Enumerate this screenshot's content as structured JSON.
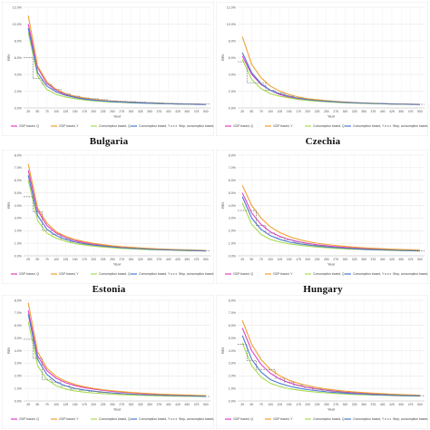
{
  "chart_data": [
    {
      "type": "line",
      "country": "Bulgaria",
      "ylabel": "RRI",
      "xlabel": "Year",
      "ylim": [
        0,
        0.12
      ],
      "yticks": [
        "0.0%",
        "2.0%",
        "4.0%",
        "6.0%",
        "8.0%",
        "10.0%",
        "12.0%"
      ],
      "xticks": [
        "25",
        "50",
        "75",
        "100",
        "125",
        "150",
        "175",
        "200",
        "225",
        "250",
        "275",
        "300",
        "325",
        "350",
        "375",
        "400",
        "425",
        "450",
        "475",
        "500"
      ],
      "series": [
        {
          "name": "GDP based, Q",
          "color": "#e040c8",
          "values": [
            0.1,
            0.048,
            0.029,
            0.021,
            0.016,
            0.013,
            0.011,
            0.0095,
            0.0085,
            0.0075,
            0.007,
            0.0065,
            0.006,
            0.0056,
            0.0053,
            0.005,
            0.0047,
            0.0045,
            0.0043,
            0.0041
          ]
        },
        {
          "name": "GDP based, Y",
          "color": "#f0a030",
          "values": [
            0.11,
            0.05,
            0.031,
            0.022,
            0.017,
            0.014,
            0.012,
            0.0103,
            0.0092,
            0.0082,
            0.0075,
            0.007,
            0.0064,
            0.006,
            0.0056,
            0.0053,
            0.005,
            0.0047,
            0.0045,
            0.0043
          ]
        },
        {
          "name": "Consumption based, Q",
          "color": "#a8dc50",
          "values": [
            0.09,
            0.038,
            0.022,
            0.016,
            0.013,
            0.011,
            0.0095,
            0.0085,
            0.0077,
            0.007,
            0.0065,
            0.006,
            0.0057,
            0.0054,
            0.0051,
            0.0049,
            0.0047,
            0.0045,
            0.0043,
            0.0042
          ]
        },
        {
          "name": "Consumption based, Y",
          "color": "#4a78d8",
          "values": [
            0.095,
            0.042,
            0.026,
            0.019,
            0.015,
            0.0125,
            0.0105,
            0.0093,
            0.0083,
            0.0075,
            0.0069,
            0.0064,
            0.006,
            0.0056,
            0.0053,
            0.005,
            0.0048,
            0.0046,
            0.0044,
            0.0042
          ]
        },
        {
          "name": "Step, consumption based, Y",
          "color": "#808080",
          "dashed": true,
          "values": [
            0.06,
            0.035,
            0.028,
            0.022,
            0.017,
            0.014,
            0.012,
            0.011,
            0.01,
            0.0085,
            0.008,
            0.0075,
            0.007,
            0.0065,
            0.006,
            0.0055,
            0.0052,
            0.005,
            0.0048,
            0.0046
          ]
        }
      ]
    },
    {
      "type": "line",
      "country": "Czechia",
      "ylabel": "RRI",
      "xlabel": "Year",
      "ylim": [
        0,
        0.12
      ],
      "yticks": [
        "0.0%",
        "2.0%",
        "4.0%",
        "6.0%",
        "8.0%",
        "10.0%",
        "12.0%"
      ],
      "xticks": [
        "25",
        "50",
        "75",
        "100",
        "125",
        "150",
        "175",
        "200",
        "225",
        "250",
        "275",
        "300",
        "325",
        "350",
        "375",
        "400",
        "425",
        "450",
        "475",
        "500"
      ],
      "series": [
        {
          "name": "GDP based, Q",
          "color": "#e040c8",
          "values": [
            0.062,
            0.04,
            0.028,
            0.021,
            0.016,
            0.013,
            0.011,
            0.0095,
            0.0085,
            0.0077,
            0.007,
            0.0065,
            0.006,
            0.0056,
            0.0053,
            0.005,
            0.0047,
            0.0045,
            0.0043,
            0.0041
          ]
        },
        {
          "name": "GDP based, Y",
          "color": "#f0a030",
          "values": [
            0.085,
            0.052,
            0.036,
            0.026,
            0.02,
            0.016,
            0.013,
            0.011,
            0.0098,
            0.0087,
            0.0078,
            0.0071,
            0.0065,
            0.006,
            0.0056,
            0.0052,
            0.0049,
            0.0047,
            0.0045,
            0.0043
          ]
        },
        {
          "name": "Consumption based, Q",
          "color": "#a8dc50",
          "values": [
            0.058,
            0.034,
            0.023,
            0.017,
            0.014,
            0.012,
            0.01,
            0.009,
            0.008,
            0.0073,
            0.0067,
            0.0062,
            0.0058,
            0.0054,
            0.0051,
            0.0049,
            0.0047,
            0.0045,
            0.0043,
            0.0042
          ]
        },
        {
          "name": "Consumption based, Y",
          "color": "#4a78d8",
          "values": [
            0.066,
            0.042,
            0.029,
            0.021,
            0.017,
            0.014,
            0.0115,
            0.0099,
            0.0088,
            0.0079,
            0.0072,
            0.0066,
            0.0061,
            0.0057,
            0.0054,
            0.0051,
            0.0048,
            0.0046,
            0.0044,
            0.0042
          ]
        },
        {
          "name": "Step, consumption based, Y",
          "color": "#808080",
          "dashed": true,
          "values": [
            0.055,
            0.03,
            0.03,
            0.021,
            0.018,
            0.014,
            0.012,
            0.01,
            0.009,
            0.0082,
            0.0075,
            0.0068,
            0.0062,
            0.0058,
            0.0055,
            0.0052,
            0.0049,
            0.0047,
            0.0045,
            0.0043
          ]
        }
      ]
    },
    {
      "type": "line",
      "country": "Estonia",
      "ylabel": "RRI",
      "xlabel": "Year",
      "ylim": [
        0,
        0.08
      ],
      "yticks": [
        "0.0%",
        "1.0%",
        "2.0%",
        "3.0%",
        "4.0%",
        "5.0%",
        "6.0%",
        "7.0%",
        "8.0%"
      ],
      "xticks": [
        "25",
        "50",
        "75",
        "100",
        "125",
        "150",
        "175",
        "200",
        "225",
        "250",
        "275",
        "300",
        "325",
        "350",
        "375",
        "400",
        "425",
        "450",
        "475",
        "500"
      ],
      "series": [
        {
          "name": "GDP based, Q",
          "color": "#e040c8",
          "values": [
            0.068,
            0.036,
            0.024,
            0.018,
            0.0145,
            0.012,
            0.0105,
            0.0093,
            0.0084,
            0.0076,
            0.007,
            0.0065,
            0.006,
            0.0056,
            0.0053,
            0.005,
            0.0047,
            0.0045,
            0.0043,
            0.0041
          ]
        },
        {
          "name": "GDP based, Y",
          "color": "#f0a030",
          "values": [
            0.073,
            0.038,
            0.026,
            0.019,
            0.0155,
            0.013,
            0.0112,
            0.0099,
            0.0089,
            0.008,
            0.0073,
            0.0068,
            0.0063,
            0.0059,
            0.0055,
            0.0052,
            0.0049,
            0.0047,
            0.0045,
            0.0043
          ]
        },
        {
          "name": "Consumption based, Q",
          "color": "#a8dc50",
          "values": [
            0.06,
            0.028,
            0.018,
            0.014,
            0.0115,
            0.0098,
            0.0086,
            0.0077,
            0.007,
            0.0064,
            0.0059,
            0.0055,
            0.0052,
            0.0049,
            0.0047,
            0.0045,
            0.0043,
            0.0041,
            0.004,
            0.0038
          ]
        },
        {
          "name": "Consumption based, Y",
          "color": "#4a78d8",
          "values": [
            0.064,
            0.032,
            0.021,
            0.016,
            0.013,
            0.011,
            0.0095,
            0.0085,
            0.0077,
            0.007,
            0.0064,
            0.006,
            0.0056,
            0.0052,
            0.0049,
            0.0047,
            0.0045,
            0.0043,
            0.0041,
            0.0039
          ]
        },
        {
          "name": "Step, consumption based, Y",
          "color": "#808080",
          "dashed": true,
          "values": [
            0.047,
            0.035,
            0.02,
            0.017,
            0.0135,
            0.011,
            0.0098,
            0.0088,
            0.0079,
            0.0072,
            0.0066,
            0.0061,
            0.0057,
            0.0053,
            0.005,
            0.0047,
            0.0045,
            0.0043,
            0.0041,
            0.0039
          ]
        }
      ]
    },
    {
      "type": "line",
      "country": "Hungary",
      "ylabel": "RRI",
      "xlabel": "Year",
      "ylim": [
        0,
        0.08
      ],
      "yticks": [
        "0.0%",
        "1.0%",
        "2.0%",
        "3.0%",
        "4.0%",
        "5.0%",
        "6.0%",
        "7.0%",
        "8.0%"
      ],
      "xticks": [
        "25",
        "50",
        "75",
        "100",
        "125",
        "150",
        "175",
        "200",
        "225",
        "250",
        "275",
        "300",
        "325",
        "350",
        "375",
        "400",
        "425",
        "450",
        "475",
        "500"
      ],
      "series": [
        {
          "name": "GDP based, Q",
          "color": "#e040c8",
          "values": [
            0.05,
            0.034,
            0.025,
            0.019,
            0.0155,
            0.013,
            0.0112,
            0.0099,
            0.0088,
            0.008,
            0.0073,
            0.0067,
            0.0062,
            0.0058,
            0.0055,
            0.0052,
            0.0049,
            0.0047,
            0.0045,
            0.0043
          ]
        },
        {
          "name": "GDP based, Y",
          "color": "#f0a030",
          "values": [
            0.056,
            0.04,
            0.03,
            0.023,
            0.0185,
            0.0153,
            0.013,
            0.0113,
            0.01,
            0.009,
            0.0082,
            0.0075,
            0.0069,
            0.0064,
            0.006,
            0.0056,
            0.0053,
            0.005,
            0.0048,
            0.0046
          ]
        },
        {
          "name": "Consumption based, Q",
          "color": "#a8dc50",
          "values": [
            0.042,
            0.025,
            0.017,
            0.013,
            0.011,
            0.0095,
            0.0085,
            0.0077,
            0.007,
            0.0064,
            0.0059,
            0.0055,
            0.0052,
            0.0049,
            0.0047,
            0.0045,
            0.0043,
            0.0041,
            0.004,
            0.0038
          ]
        },
        {
          "name": "Consumption based, Y",
          "color": "#4a78d8",
          "values": [
            0.047,
            0.03,
            0.021,
            0.016,
            0.013,
            0.011,
            0.0097,
            0.0087,
            0.0078,
            0.0071,
            0.0065,
            0.006,
            0.0056,
            0.0052,
            0.0049,
            0.0047,
            0.0045,
            0.0043,
            0.0041,
            0.0039
          ]
        },
        {
          "name": "Step, consumption based, Y",
          "color": "#808080",
          "dashed": true,
          "values": [
            0.036,
            0.036,
            0.024,
            0.018,
            0.0145,
            0.0125,
            0.0107,
            0.0094,
            0.0084,
            0.0076,
            0.0069,
            0.0063,
            0.0059,
            0.0055,
            0.0052,
            0.0049,
            0.0046,
            0.0044,
            0.0042,
            0.004
          ]
        }
      ]
    },
    {
      "type": "line",
      "country": "",
      "ylabel": "RRI",
      "xlabel": "Year",
      "ylim": [
        0,
        0.08
      ],
      "yticks": [
        "0.0%",
        "1.0%",
        "2.0%",
        "3.0%",
        "4.0%",
        "5.0%",
        "6.0%",
        "7.0%",
        "8.0%"
      ],
      "xticks": [
        "25",
        "50",
        "75",
        "100",
        "125",
        "150",
        "175",
        "200",
        "225",
        "250",
        "275",
        "300",
        "325",
        "350",
        "375",
        "400",
        "425",
        "450",
        "475",
        "500"
      ],
      "series": [
        {
          "name": "GDP based, Q",
          "color": "#e040c8",
          "values": [
            0.072,
            0.036,
            0.024,
            0.018,
            0.0145,
            0.0122,
            0.0106,
            0.0094,
            0.0084,
            0.0076,
            0.007,
            0.0065,
            0.006,
            0.0056,
            0.0053,
            0.005,
            0.0047,
            0.0045,
            0.0043,
            0.0041
          ]
        },
        {
          "name": "GDP based, Y",
          "color": "#f0a030",
          "values": [
            0.078,
            0.039,
            0.026,
            0.0195,
            0.0157,
            0.0131,
            0.0113,
            0.01,
            0.0089,
            0.0081,
            0.0074,
            0.0068,
            0.0063,
            0.0059,
            0.0055,
            0.0052,
            0.0049,
            0.0047,
            0.0045,
            0.0043
          ]
        },
        {
          "name": "Consumption based, Q",
          "color": "#a8dc50",
          "values": [
            0.063,
            0.028,
            0.017,
            0.012,
            0.0095,
            0.008,
            0.007,
            0.0063,
            0.0058,
            0.0054,
            0.005,
            0.0047,
            0.0045,
            0.0043,
            0.0041,
            0.0039,
            0.0038,
            0.0037,
            0.0036,
            0.0035
          ]
        },
        {
          "name": "Consumption based, Y",
          "color": "#4a78d8",
          "values": [
            0.069,
            0.033,
            0.021,
            0.015,
            0.012,
            0.01,
            0.0087,
            0.0078,
            0.007,
            0.0064,
            0.0059,
            0.0055,
            0.0051,
            0.0048,
            0.0046,
            0.0044,
            0.0042,
            0.004,
            0.0039,
            0.0037
          ]
        },
        {
          "name": "Step, consumption based, Y",
          "color": "#808080",
          "dashed": true,
          "values": [
            0.049,
            0.034,
            0.017,
            0.015,
            0.012,
            0.0095,
            0.0085,
            0.0076,
            0.0069,
            0.0063,
            0.0058,
            0.0054,
            0.005,
            0.0047,
            0.0045,
            0.0043,
            0.0041,
            0.0039,
            0.0038,
            0.0036
          ]
        }
      ]
    },
    {
      "type": "line",
      "country": "",
      "ylabel": "RRI",
      "xlabel": "Year",
      "ylim": [
        0,
        0.08
      ],
      "yticks": [
        "0.0%",
        "1.0%",
        "2.0%",
        "3.0%",
        "4.0%",
        "5.0%",
        "6.0%",
        "7.0%",
        "8.0%"
      ],
      "xticks": [
        "25",
        "50",
        "75",
        "100",
        "125",
        "150",
        "175",
        "200",
        "225",
        "250",
        "275",
        "300",
        "325",
        "350",
        "375",
        "400",
        "425",
        "450",
        "475",
        "500"
      ],
      "series": [
        {
          "name": "GDP based, Q",
          "color": "#e040c8",
          "values": [
            0.058,
            0.04,
            0.029,
            0.022,
            0.0175,
            0.0145,
            0.0123,
            0.0107,
            0.0095,
            0.0085,
            0.0077,
            0.007,
            0.0065,
            0.006,
            0.0056,
            0.0053,
            0.005,
            0.0047,
            0.0045,
            0.0043
          ]
        },
        {
          "name": "GDP based, Y",
          "color": "#f0a030",
          "values": [
            0.064,
            0.045,
            0.033,
            0.025,
            0.02,
            0.0165,
            0.014,
            0.0121,
            0.0107,
            0.0095,
            0.0086,
            0.0078,
            0.0072,
            0.0066,
            0.0062,
            0.0058,
            0.0054,
            0.0051,
            0.0048,
            0.0046
          ]
        },
        {
          "name": "Consumption based, Q",
          "color": "#a8dc50",
          "values": [
            0.046,
            0.028,
            0.019,
            0.014,
            0.0115,
            0.0098,
            0.0086,
            0.0077,
            0.007,
            0.0064,
            0.0059,
            0.0055,
            0.0052,
            0.0049,
            0.0047,
            0.0045,
            0.0043,
            0.0041,
            0.004,
            0.0038
          ]
        },
        {
          "name": "Consumption based, Y",
          "color": "#4a78d8",
          "values": [
            0.052,
            0.033,
            0.023,
            0.017,
            0.014,
            0.0118,
            0.0102,
            0.009,
            0.0081,
            0.0073,
            0.0067,
            0.0062,
            0.0057,
            0.0054,
            0.005,
            0.0048,
            0.0045,
            0.0043,
            0.0041,
            0.004
          ]
        },
        {
          "name": "Step, consumption based, Y",
          "color": "#808080",
          "dashed": true,
          "values": [
            0.045,
            0.032,
            0.025,
            0.025,
            0.018,
            0.015,
            0.0125,
            0.0108,
            0.0095,
            0.0085,
            0.0077,
            0.007,
            0.0064,
            0.0059,
            0.0055,
            0.0052,
            0.0049,
            0.0046,
            0.0044,
            0.0042
          ]
        }
      ]
    }
  ]
}
